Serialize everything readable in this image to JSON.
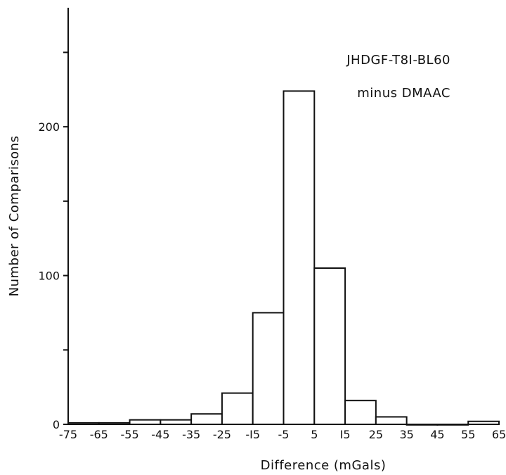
{
  "chart_data": {
    "type": "bar",
    "xlabel": "Difference (mGals)",
    "ylabel": "Number of Comparisons",
    "x_ticks": [
      -75,
      -65,
      -55,
      -45,
      -35,
      -25,
      -15,
      -5,
      5,
      15,
      25,
      35,
      45,
      55,
      65
    ],
    "x_tick_labels": [
      "-75",
      "-65",
      "-55",
      "-45",
      "-35",
      "-25",
      "-I5",
      "-5",
      "5",
      "I5",
      "25",
      "35",
      "45",
      "55",
      "65"
    ],
    "y_ticks": [
      0,
      50,
      100,
      150,
      200,
      250
    ],
    "y_tick_labels": [
      "0",
      "",
      "100",
      "",
      "200",
      ""
    ],
    "xlim": [
      -75,
      65
    ],
    "ylim": [
      0,
      280
    ],
    "bins": [
      {
        "start": -75,
        "end": -65,
        "value": 1
      },
      {
        "start": -65,
        "end": -55,
        "value": 1
      },
      {
        "start": -55,
        "end": -45,
        "value": 3
      },
      {
        "start": -45,
        "end": -35,
        "value": 3
      },
      {
        "start": -35,
        "end": -25,
        "value": 7
      },
      {
        "start": -25,
        "end": -15,
        "value": 21
      },
      {
        "start": -15,
        "end": -5,
        "value": 75
      },
      {
        "start": -5,
        "end": 5,
        "value": 224
      },
      {
        "start": 5,
        "end": 15,
        "value": 105
      },
      {
        "start": 15,
        "end": 25,
        "value": 16
      },
      {
        "start": 25,
        "end": 35,
        "value": 5
      },
      {
        "start": 35,
        "end": 45,
        "value": 0
      },
      {
        "start": 45,
        "end": 55,
        "value": 0
      },
      {
        "start": 55,
        "end": 65,
        "value": 2
      }
    ],
    "annotations": [
      "JHDGF-T8I-BL60",
      "minus DMAAC"
    ]
  }
}
